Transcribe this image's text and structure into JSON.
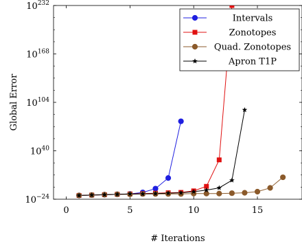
{
  "chart_data": {
    "type": "line",
    "xlabel": "# Iterations",
    "ylabel": "Global Error",
    "y_scale": "log",
    "xlim": [
      -1,
      18.5
    ],
    "ylim_exponent": [
      -24,
      232
    ],
    "x_ticks": [
      0,
      5,
      10,
      15
    ],
    "x_tick_labels": [
      "0",
      "5",
      "10",
      "15"
    ],
    "y_tick_exponents": [
      -24,
      40,
      104,
      168,
      232
    ],
    "y_tick_labels": [
      {
        "base": "10",
        "exp": "−24"
      },
      {
        "base": "10",
        "exp": "40"
      },
      {
        "base": "10",
        "exp": "104"
      },
      {
        "base": "10",
        "exp": "168"
      },
      {
        "base": "10",
        "exp": "232"
      }
    ],
    "legend_position": "top-right",
    "grid": false,
    "series": [
      {
        "name": "Intervals",
        "color": "#1f1fe0",
        "marker": "circle",
        "x": [
          1,
          2,
          3,
          4,
          5,
          6,
          7,
          8,
          9
        ],
        "y_exponent": [
          -19,
          -18.5,
          -18,
          -17.5,
          -17,
          -15,
          -10,
          4,
          79
        ]
      },
      {
        "name": "Zonotopes",
        "color": "#e01010",
        "marker": "square",
        "x": [
          1,
          2,
          3,
          4,
          5,
          6,
          7,
          8,
          9,
          10,
          11,
          12,
          13
        ],
        "y_exponent": [
          -19,
          -18.5,
          -18,
          -17.5,
          -17,
          -16.5,
          -16,
          -15.5,
          -15,
          -13,
          -7,
          28,
          232
        ]
      },
      {
        "name": "Quad. Zonotopes",
        "color": "#8b5a2b",
        "marker": "circle",
        "x": [
          1,
          2,
          3,
          4,
          5,
          6,
          7,
          8,
          9,
          10,
          11,
          12,
          13,
          14,
          15,
          16,
          17
        ],
        "y_exponent": [
          -19,
          -18.5,
          -18,
          -17.5,
          -17.5,
          -17,
          -17,
          -17,
          -17,
          -16.5,
          -16.5,
          -16.5,
          -16,
          -15.5,
          -14,
          -9,
          5
        ]
      },
      {
        "name": "Apron T1P",
        "color": "#000000",
        "marker": "star",
        "x": [
          1,
          2,
          3,
          4,
          5,
          6,
          7,
          8,
          9,
          10,
          11,
          12,
          13,
          14
        ],
        "y_exponent": [
          -19,
          -18.5,
          -18,
          -17.5,
          -17,
          -17,
          -16.5,
          -16,
          -15.5,
          -14,
          -12,
          -9,
          1,
          94
        ]
      }
    ]
  }
}
